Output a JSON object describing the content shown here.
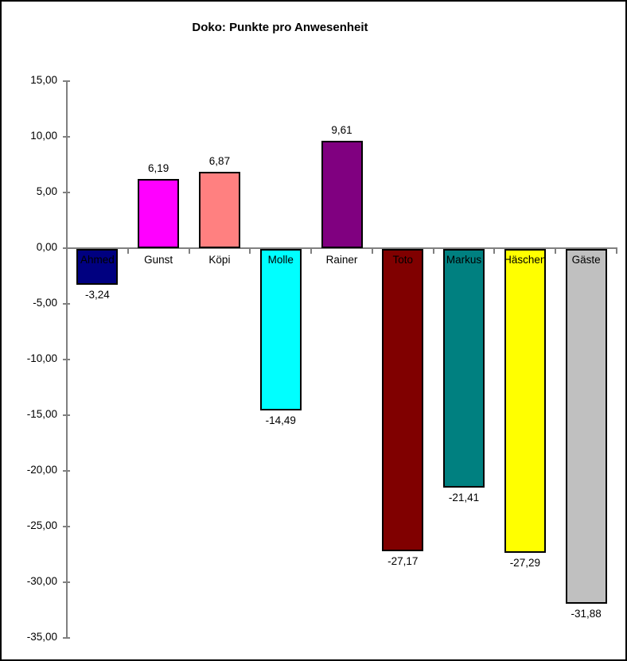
{
  "chart_data": {
    "type": "bar",
    "title": "Doko: Punkte pro Anwesenheit",
    "categories": [
      "Ahmed",
      "Gunst",
      "Köpi",
      "Molle",
      "Rainer",
      "Toto",
      "Markus",
      "Häschen",
      "Gäste"
    ],
    "values": [
      -3.24,
      6.19,
      6.87,
      -14.49,
      9.61,
      -27.17,
      -21.41,
      -27.29,
      -31.88
    ],
    "value_labels": [
      "-3,24",
      "6,19",
      "6,87",
      "-14,49",
      "9,61",
      "-27,17",
      "-21,41",
      "-27,29",
      "-31,88"
    ],
    "bar_colors": [
      "#000080",
      "#FF00FF",
      "#FF8080",
      "#00FFFF",
      "#800080",
      "#800000",
      "#008080",
      "#FFFF00",
      "#C0C0C0"
    ],
    "bar_border_color": "#000000",
    "xlabel": "",
    "ylabel": "",
    "ylim": [
      -35,
      15
    ],
    "ytick_step": 5,
    "ytick_values": [
      15,
      10,
      5,
      0,
      -5,
      -10,
      -15,
      -20,
      -25,
      -30,
      -35
    ],
    "ytick_labels": [
      "15,00",
      "10,00",
      "5,00",
      "0,00",
      "-5,00",
      "-10,00",
      "-15,00",
      "-20,00",
      "-25,00",
      "-30,00",
      "-35,00"
    ],
    "grid": false,
    "legend": "none",
    "axis_color": "#808080",
    "number_format": "decimal-comma"
  }
}
